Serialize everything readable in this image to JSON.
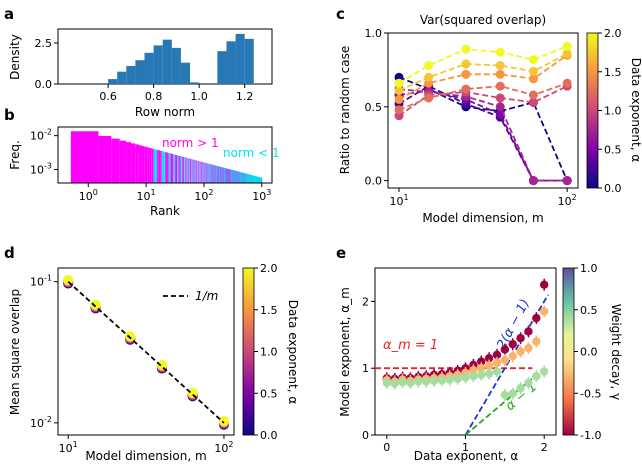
{
  "figure": {
    "panel_labels": [
      "a",
      "b",
      "c",
      "d",
      "e"
    ]
  },
  "chart_data": [
    {
      "panel": "a",
      "type": "bar",
      "title": "",
      "xlabel": "Row norm",
      "ylabel": "Density",
      "xlim": [
        0.38,
        1.32
      ],
      "ylim": [
        0,
        3.35
      ],
      "xticks": [
        "0.6",
        "0.8",
        "1.0",
        "1.2"
      ],
      "yticks": [
        "0.0",
        "2.5"
      ],
      "bin_edges": [
        0.56,
        0.6,
        0.64,
        0.68,
        0.72,
        0.76,
        0.8,
        0.84,
        0.88,
        0.92,
        0.96,
        1.0,
        1.04,
        1.08,
        1.12,
        1.16,
        1.2,
        1.24
      ],
      "values": [
        0.05,
        0.3,
        0.75,
        1.1,
        1.45,
        1.9,
        2.35,
        2.7,
        2.2,
        1.3,
        0.1,
        0.0,
        0.0,
        2.0,
        2.6,
        3.05,
        2.75
      ],
      "color": "#2878b5"
    },
    {
      "panel": "b",
      "type": "bar",
      "title": "",
      "xlabel": "Rank",
      "ylabel": "Freq.",
      "xscale": "log",
      "yscale": "log",
      "xlim": [
        0.3,
        1500
      ],
      "ylim": [
        0.0004,
        0.018
      ],
      "xticks": [
        "10^0",
        "10^1",
        "10^2",
        "10^3"
      ],
      "yticks": [
        "10^-3",
        "10^-2"
      ],
      "series": [
        {
          "name": "norm > 1",
          "color": "#ff00ff"
        },
        {
          "name": "norm < 1",
          "color": "#00e5ee"
        }
      ],
      "annotations": [
        "norm > 1",
        "norm < 1"
      ],
      "zipf_start_value": 0.0135,
      "ranks": 1000
    },
    {
      "panel": "c",
      "type": "line",
      "title": "Var(squared overlap)",
      "xlabel": "Model dimension, m",
      "ylabel": "Ratio to random case",
      "xscale": "log",
      "xlim": [
        8.6,
        116
      ],
      "ylim": [
        -0.05,
        1.0
      ],
      "xticks": [
        "10^1",
        "10^2"
      ],
      "yticks": [
        "0.0",
        "0.5",
        "1.0"
      ],
      "x": [
        10,
        15,
        25,
        40,
        63,
        100
      ],
      "colorbar": {
        "label": "Data exponent, α",
        "min": 0.0,
        "max": 2.0,
        "ticks": [
          "0.0",
          "0.5",
          "1.0",
          "1.5",
          "2.0"
        ]
      },
      "series": [
        {
          "alpha": 0.0,
          "values": [
            0.7,
            0.62,
            0.5,
            0.47,
            0.53,
            0.0
          ]
        },
        {
          "alpha": 0.25,
          "values": [
            0.52,
            0.64,
            0.52,
            0.43,
            0.0,
            0.0
          ]
        },
        {
          "alpha": 0.5,
          "values": [
            0.58,
            0.61,
            0.55,
            0.45,
            0.0,
            0.0
          ]
        },
        {
          "alpha": 0.75,
          "values": [
            0.62,
            0.6,
            0.57,
            0.5,
            0.0,
            0.0
          ]
        },
        {
          "alpha": 1.0,
          "values": [
            0.44,
            0.58,
            0.6,
            0.56,
            0.53,
            0.64
          ]
        },
        {
          "alpha": 1.25,
          "values": [
            0.48,
            0.56,
            0.62,
            0.64,
            0.58,
            0.66
          ]
        },
        {
          "alpha": 1.5,
          "values": [
            0.55,
            0.66,
            0.72,
            0.72,
            0.69,
            0.85
          ]
        },
        {
          "alpha": 1.75,
          "values": [
            0.61,
            0.7,
            0.79,
            0.78,
            0.74,
            0.86
          ]
        },
        {
          "alpha": 2.0,
          "values": [
            0.66,
            0.78,
            0.89,
            0.87,
            0.82,
            0.91
          ]
        }
      ]
    },
    {
      "panel": "d",
      "type": "scatter",
      "title": "",
      "xlabel": "Model dimension, m",
      "ylabel": "Mean square overlap",
      "xscale": "log",
      "yscale": "log",
      "xlim": [
        8.6,
        116
      ],
      "ylim": [
        0.0082,
        0.125
      ],
      "xticks": [
        "10^1",
        "10^2"
      ],
      "yticks": [
        "10^-2",
        "10^-1"
      ],
      "x": [
        10,
        15,
        25,
        40,
        63,
        100
      ],
      "alphas": [
        0.0,
        0.25,
        0.5,
        0.75,
        1.0,
        1.25,
        1.5,
        1.75,
        2.0
      ],
      "reference_line": {
        "label": "1/m",
        "style": "dashed",
        "color": "#000000"
      },
      "colorbar": {
        "label": "Data exponent, α",
        "min": 0.0,
        "max": 2.0,
        "ticks": [
          "0.0",
          "0.5",
          "1.0",
          "1.5",
          "2.0"
        ]
      },
      "note": "all series lie slightly above 1/m, higher α slightly higher"
    },
    {
      "panel": "e",
      "type": "scatter",
      "title": "",
      "xlabel": "Data exponent, α",
      "ylabel": "Model exponent, α_m",
      "xlim": [
        -0.15,
        2.15
      ],
      "ylim": [
        0,
        2.5
      ],
      "xticks": [
        "0",
        "1",
        "2"
      ],
      "yticks": [
        "0",
        "1",
        "2"
      ],
      "colorbar": {
        "label": "Weight decay, γ",
        "min": -1.0,
        "max": 1.0,
        "ticks": [
          "-1.0",
          "-0.5",
          "0.0",
          "0.5",
          "1.0"
        ]
      },
      "reference_lines": [
        {
          "label": "α_m = 1",
          "color": "#e8262a",
          "style": "dashed"
        },
        {
          "label": "2(α − 1)",
          "color": "#2233cc",
          "style": "dashed"
        },
        {
          "label": "α − 1",
          "color": "#22aa22",
          "style": "dashed"
        }
      ],
      "points": [
        {
          "alpha": 0.0,
          "values": [
            0.85,
            0.82,
            0.78
          ]
        },
        {
          "alpha": 0.1,
          "values": [
            0.84,
            0.8,
            0.77
          ]
        },
        {
          "alpha": 0.2,
          "values": [
            0.86,
            0.83,
            0.79
          ]
        },
        {
          "alpha": 0.3,
          "values": [
            0.85,
            0.81,
            0.78
          ]
        },
        {
          "alpha": 0.4,
          "values": [
            0.87,
            0.83,
            0.8
          ]
        },
        {
          "alpha": 0.5,
          "values": [
            0.88,
            0.84,
            0.8
          ]
        },
        {
          "alpha": 0.6,
          "values": [
            0.9,
            0.85,
            0.81
          ]
        },
        {
          "alpha": 0.7,
          "values": [
            0.91,
            0.86,
            0.82
          ]
        },
        {
          "alpha": 0.8,
          "values": [
            0.93,
            0.88,
            0.83
          ]
        },
        {
          "alpha": 0.9,
          "values": [
            0.96,
            0.9,
            0.84
          ]
        },
        {
          "alpha": 1.0,
          "values": [
            1.0,
            0.93,
            0.86
          ]
        },
        {
          "alpha": 1.1,
          "values": [
            1.05,
            0.97,
            0.88
          ]
        },
        {
          "alpha": 1.2,
          "values": [
            1.1,
            1.0,
            0.9
          ]
        },
        {
          "alpha": 1.3,
          "values": [
            1.15,
            1.04,
            0.92
          ]
        },
        {
          "alpha": 1.4,
          "values": [
            1.2,
            1.08,
            0.95
          ]
        },
        {
          "alpha": 1.5,
          "values": [
            1.28,
            1.12,
            0.6
          ]
        },
        {
          "alpha": 1.6,
          "values": [
            1.36,
            1.18,
            0.62
          ]
        },
        {
          "alpha": 1.7,
          "values": [
            1.45,
            1.25,
            0.7
          ]
        },
        {
          "alpha": 1.8,
          "values": [
            1.55,
            1.3,
            0.78
          ]
        },
        {
          "alpha": 1.9,
          "values": [
            1.75,
            1.4,
            0.88
          ]
        },
        {
          "alpha": 2.0,
          "values": [
            2.25,
            1.85,
            0.95
          ]
        }
      ],
      "gamma_levels": [
        -1.0,
        -0.3,
        0.4
      ]
    }
  ]
}
